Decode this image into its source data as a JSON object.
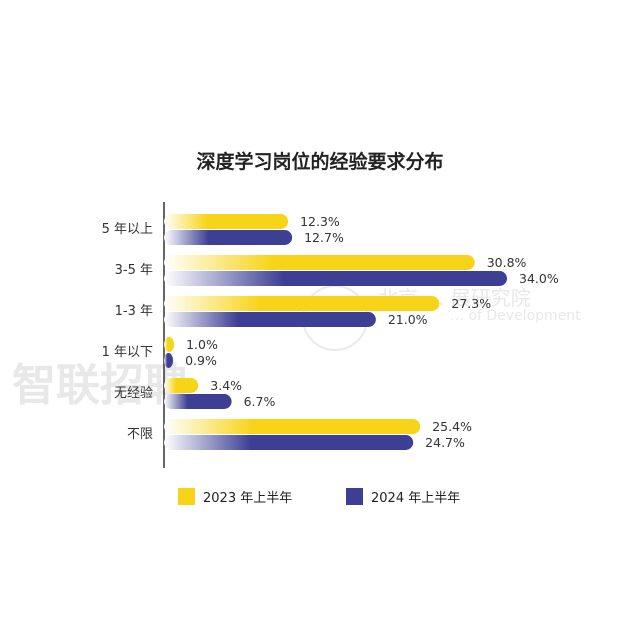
{
  "watermark": {
    "brand": "智联招聘",
    "institute": "北京 … 展研究院",
    "institute_en": "… of Development"
  },
  "chart_data": {
    "type": "bar",
    "orientation": "horizontal",
    "title": "深度学习岗位的经验要求分布",
    "categories": [
      "5 年以上",
      "3-5 年",
      "1-3 年",
      "1 年以下",
      "无经验",
      "不限"
    ],
    "series": [
      {
        "name": "2023 年上半年",
        "values": [
          12.3,
          30.8,
          27.3,
          1.0,
          3.4,
          25.4
        ],
        "labels": [
          "12.3%",
          "30.8%",
          "27.3%",
          "1.0%",
          "3.4%",
          "25.4%"
        ],
        "color": "#F7D417"
      },
      {
        "name": "2024 年上半年",
        "values": [
          12.7,
          34.0,
          21.0,
          0.9,
          6.7,
          24.7
        ],
        "labels": [
          "12.7%",
          "34.0%",
          "21.0%",
          "0.9%",
          "6.7%",
          "24.7%"
        ],
        "color": "#3C3F94"
      }
    ],
    "xlim": [
      0,
      34
    ],
    "legend_position": "bottom",
    "grid": false
  }
}
